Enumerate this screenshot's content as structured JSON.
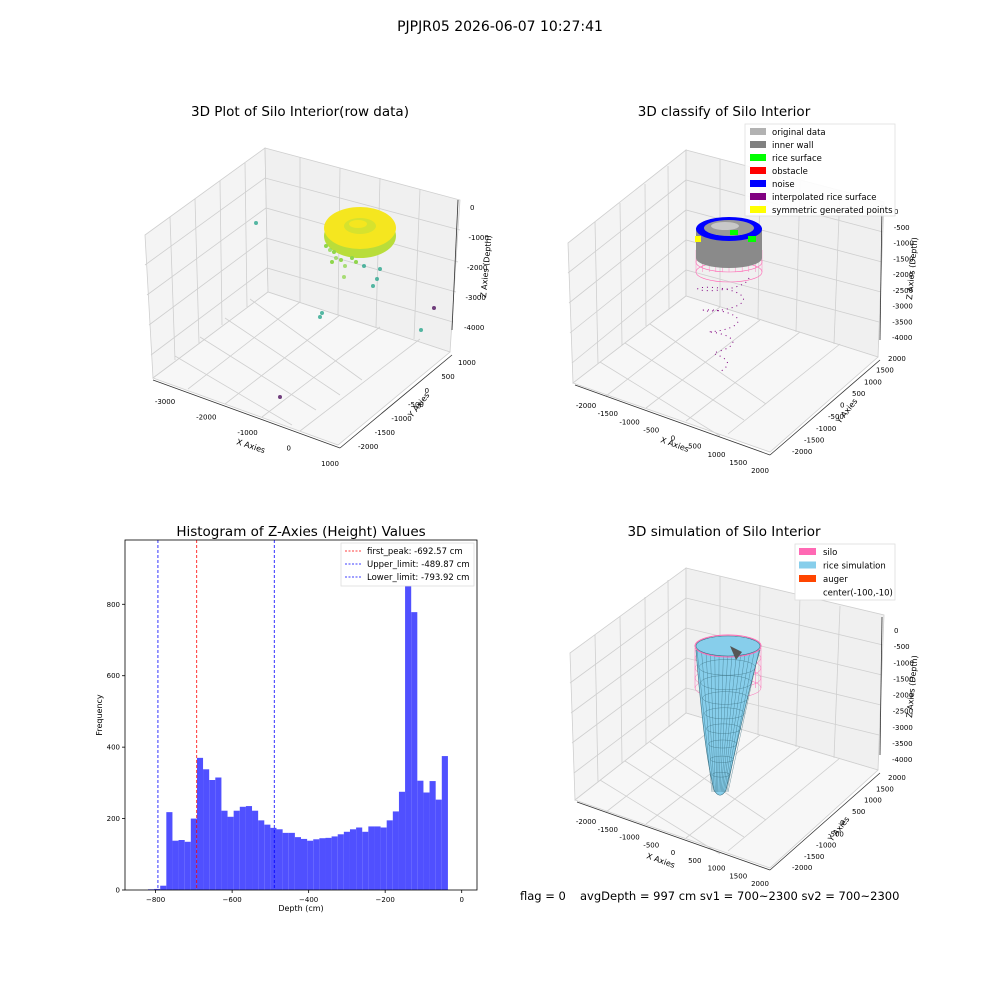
{
  "suptitle": "PJPJR05 2026-06-07 10:27:41",
  "footer": {
    "flag": "flag = 0",
    "avg": "avgDepth = 997 cm  sv1 = 700~2300  sv2 = 700~2300"
  },
  "colors": {
    "yellow_core": "#f5e61f",
    "green_point": "#8fd64c",
    "teal_point": "#1fa187",
    "purple_point": "#440154",
    "classify_original": "#b2b2b2",
    "classify_inner": "#808080",
    "classify_rice": "#00ff00",
    "classify_obstacle": "#ff0000",
    "classify_noise": "#0000ff",
    "classify_interp": "#800080",
    "classify_sym": "#ffff00",
    "silo_pink": "#ff69b4",
    "rice_blue": "#87ceeb",
    "auger_red": "#ff4500",
    "hist_bar": "#5050ff"
  },
  "chart_data": [
    {
      "type": "scatter3d",
      "title": "3D Plot of Silo Interior(row data)",
      "xlabel": "X Axies",
      "ylabel": "Y Axies",
      "zlabel": "Z Axies (Depth)",
      "xticks": [
        "-3000",
        "-2000",
        "-1000",
        "0",
        "1000"
      ],
      "yticks": [
        "1000",
        "500",
        "0",
        "-500",
        "-1000",
        "-1500",
        "-2000"
      ],
      "zticks": [
        "0",
        "-1000",
        "-2000",
        "-3000",
        "-4000"
      ],
      "points": [
        {
          "x": -150,
          "y": 300,
          "z": -1050,
          "c": "green"
        },
        {
          "x": -200,
          "y": 100,
          "z": -1300,
          "c": "green"
        },
        {
          "x": -350,
          "y": -50,
          "z": -1450,
          "c": "green"
        },
        {
          "x": 300,
          "y": 500,
          "z": -1900,
          "c": "teal"
        },
        {
          "x": -900,
          "y": -300,
          "z": -2100,
          "c": "teal"
        },
        {
          "x": -1300,
          "y": -900,
          "z": -3100,
          "c": "teal"
        },
        {
          "x": 900,
          "y": 800,
          "z": -3300,
          "c": "teal"
        },
        {
          "x": -2700,
          "y": 700,
          "z": -600,
          "c": "teal"
        },
        {
          "x": -1200,
          "y": -1600,
          "z": -4100,
          "c": "purple"
        }
      ]
    },
    {
      "type": "scatter3d",
      "title": "3D classify of Silo Interior",
      "xlabel": "X Axies",
      "ylabel": "Y Axies",
      "zlabel": "Z Axies (Depth)",
      "xticks": [
        "-2000",
        "-1500",
        "-1000",
        "-500",
        "0",
        "500",
        "1000",
        "1500",
        "2000"
      ],
      "yticks": [
        "2000",
        "1500",
        "1000",
        "500",
        "0",
        "-500",
        "-1000",
        "-1500",
        "-2000"
      ],
      "zticks": [
        "0",
        "-500",
        "-1000",
        "-1500",
        "-2000",
        "-2500",
        "-3000",
        "-3500",
        "-4000"
      ],
      "legend": [
        "original data",
        "inner wall",
        "rice surface",
        "obstacle",
        "noise",
        "interpolated rice surface",
        "symmetric generated points"
      ]
    },
    {
      "type": "bar",
      "title": "Histogram of Z-Axies (Height) Values",
      "xlabel": "Depth (cm)",
      "ylabel": "Frequency",
      "xlim": [
        -880,
        40
      ],
      "ylim": [
        0,
        980
      ],
      "xticks": [
        -800,
        -600,
        -400,
        -200,
        0
      ],
      "xtick_labels": [
        "−800",
        "−600",
        "−400",
        "−200",
        "0"
      ],
      "yticks": [
        0,
        200,
        400,
        600,
        800
      ],
      "yticks_labels": [
        "0",
        "200",
        "400",
        "600",
        "800"
      ],
      "bin_start": -820,
      "bin_width": 16,
      "values": [
        2,
        3,
        12,
        218,
        138,
        140,
        135,
        200,
        370,
        338,
        308,
        315,
        222,
        205,
        222,
        233,
        235,
        222,
        195,
        183,
        174,
        170,
        160,
        160,
        148,
        143,
        138,
        142,
        145,
        146,
        150,
        156,
        163,
        170,
        175,
        163,
        178,
        178,
        175,
        195,
        220,
        275,
        930,
        778,
        306,
        273,
        305,
        253,
        375
      ],
      "lines": [
        {
          "x": -692.57,
          "color": "#ff0000",
          "label": "first_peak: -692.57 cm"
        },
        {
          "x": -489.87,
          "color": "#0000ff",
          "label": "Upper_limit: -489.87 cm"
        },
        {
          "x": -793.92,
          "color": "#0000ff",
          "label": "Lower_limit: -793.92 cm"
        }
      ]
    },
    {
      "type": "surface3d",
      "title": "3D simulation of Silo Interior",
      "xlabel": "X Axies",
      "ylabel": "Y Axies",
      "zlabel": "Z Axies (Depth)",
      "xticks": [
        "-2000",
        "-1500",
        "-1000",
        "-500",
        "0",
        "500",
        "1000",
        "1500",
        "2000"
      ],
      "yticks": [
        "2000",
        "1500",
        "1000",
        "500",
        "0",
        "-500",
        "-1000",
        "-1500",
        "-2000"
      ],
      "zticks": [
        "0",
        "-500",
        "-1000",
        "-1500",
        "-2000",
        "-2500",
        "-3000",
        "-3500",
        "-4000"
      ],
      "legend": [
        "silo",
        "rice simulation",
        "auger",
        "center(-100,-10)"
      ]
    }
  ]
}
